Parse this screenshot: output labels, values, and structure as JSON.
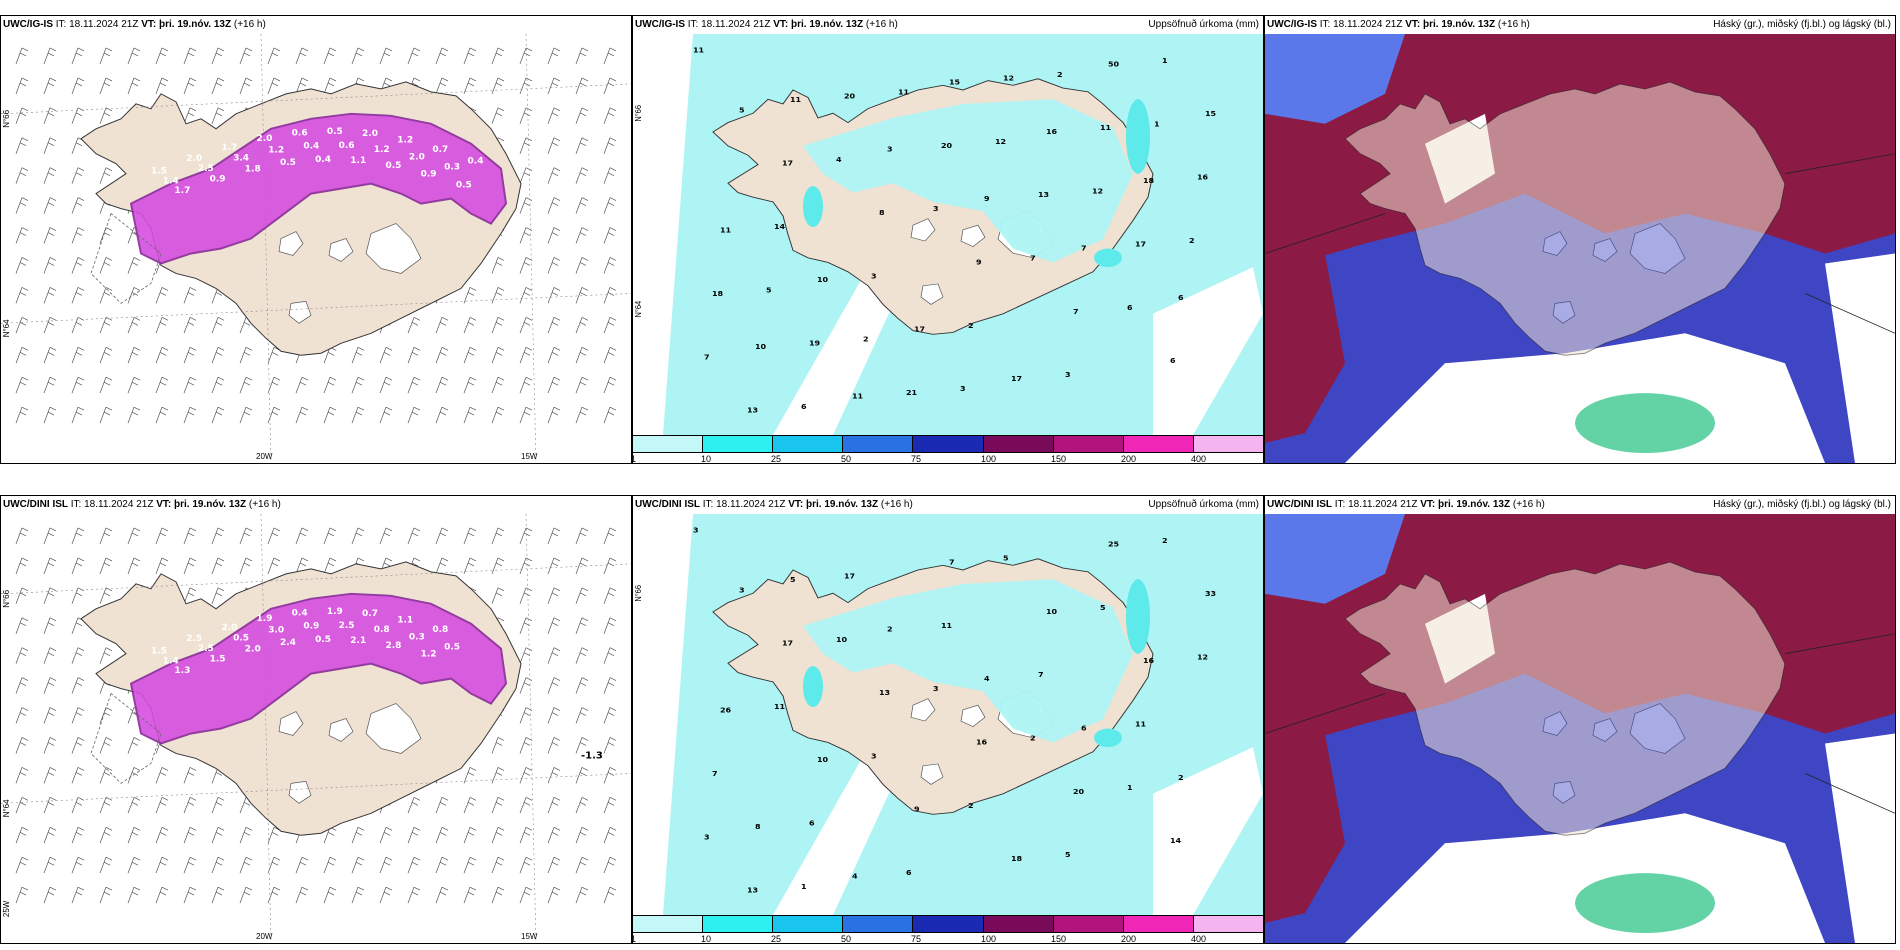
{
  "panels": [
    {
      "id": "p1",
      "model": "UWC/IG-IS",
      "it_label": "IT:",
      "it": "18.11.2024 21Z",
      "vt_label": "VT:",
      "vt": "þri. 19.nóv. 13Z",
      "lead": "(+16 h)",
      "field_title": "",
      "lat_labels": [
        "N°66",
        "N°64"
      ],
      "lon_labels": [
        "20W",
        "15W"
      ],
      "values": [
        "1.5",
        "1.4",
        "1.7",
        "2.0",
        "2.5",
        "0.9",
        "1.7",
        "3.4",
        "1.8",
        "2.0",
        "1.2",
        "0.5",
        "0.6",
        "0.4",
        "0.4",
        "0.5",
        "0.6",
        "1.1",
        "2.0",
        "1.2",
        "0.5",
        "1.2",
        "2.0",
        "0.9",
        "0.7",
        "0.3",
        "0.5",
        "0.4"
      ],
      "temp": ""
    },
    {
      "id": "p2",
      "model": "UWC/IG-IS",
      "it_label": "IT:",
      "it": "18.11.2024 21Z",
      "vt_label": "VT:",
      "vt": "þri. 19.nóv. 13Z",
      "lead": "(+16 h)",
      "field_title": "Uppsöfnuð úrkoma (mm)",
      "lat_labels": [
        "N°66",
        "N°64"
      ],
      "values": [
        "11",
        "11",
        "3",
        "9",
        "7",
        "6",
        "10",
        "11",
        "15",
        "16",
        "18",
        "11",
        "10",
        "17",
        "17",
        "50",
        "15",
        "17",
        "8",
        "9",
        "7",
        "6",
        "13",
        "20",
        "20",
        "13",
        "17",
        "18",
        "19",
        "21",
        "12",
        "11",
        "16",
        "14",
        "3",
        "2",
        "3",
        "1",
        "5",
        "4",
        "3",
        "7",
        "6",
        "7",
        "6",
        "11",
        "12",
        "12",
        "2",
        "5",
        "2",
        "3",
        "2",
        "1"
      ],
      "colorbar": [
        "1",
        "10",
        "25",
        "50",
        "75",
        "100",
        "150",
        "200",
        "400"
      ]
    },
    {
      "id": "p3",
      "model": "UWC/IG-IS",
      "it_label": "IT:",
      "it": "18.11.2024 21Z",
      "vt_label": "VT:",
      "vt": "þri. 19.nóv. 13Z",
      "lead": "(+16 h)",
      "field_title": "Háský (gr.), miðský (fj.bl.) og lágský (bl.)"
    },
    {
      "id": "p4",
      "model": "UWC/DINI ISL",
      "it_label": "IT:",
      "it": "18.11.2024 21Z",
      "vt_label": "VT:",
      "vt": "þri. 19.nóv. 13Z",
      "lead": "(+16 h)",
      "field_title": "",
      "lat_labels": [
        "N°66",
        "N°64"
      ],
      "lon_labels": [
        "20W",
        "15W",
        "25W"
      ],
      "values": [
        "1.5",
        "1.4",
        "1.3",
        "2.5",
        "2.5",
        "1.5",
        "2.0",
        "0.5",
        "2.0",
        "1.9",
        "3.0",
        "2.4",
        "0.4",
        "0.9",
        "0.5",
        "1.9",
        "2.5",
        "2.1",
        "0.7",
        "0.8",
        "2.8",
        "1.1",
        "0.3",
        "1.2",
        "0.8",
        "0.5"
      ],
      "temp": "-1.3"
    },
    {
      "id": "p5",
      "model": "UWC/DINI ISL",
      "it_label": "IT:",
      "it": "18.11.2024 21Z",
      "vt_label": "VT:",
      "vt": "þri. 19.nóv. 13Z",
      "lead": "(+16 h)",
      "field_title": "Uppsöfnuð úrkoma (mm)",
      "lat_labels": [
        "N°66"
      ],
      "values": [
        "3",
        "5",
        "2",
        "4",
        "6",
        "2",
        "8",
        "4",
        "7",
        "10",
        "16",
        "26",
        "10",
        "9",
        "18",
        "25",
        "33",
        "17",
        "13",
        "16",
        "20",
        "14",
        "13",
        "17",
        "11",
        "7",
        "11",
        "7",
        "6",
        "6",
        "5",
        "5",
        "12",
        "11",
        "3",
        "2",
        "5",
        "2",
        "3",
        "10",
        "3",
        "2",
        "1",
        "3",
        "1"
      ],
      "colorbar": [
        "1",
        "10",
        "25",
        "50",
        "75",
        "100",
        "150",
        "200",
        "400"
      ]
    },
    {
      "id": "p6",
      "model": "UWC/DINI ISL",
      "it_label": "IT:",
      "it": "18.11.2024 21Z",
      "vt_label": "VT:",
      "vt": "þri. 19.nóv. 13Z",
      "lead": "(+16 h)",
      "field_title": "Háský (gr.), miðský (fj.bl.) og lágský (bl.)"
    }
  ],
  "colors": {
    "land": "#efe2d3",
    "precip_light": "#aef4f4",
    "precip_med": "#5eeaea",
    "precip_dark": "#1ed4d4",
    "snow": "#d64fe0",
    "snow_dark": "#8a2a9a",
    "cloud_high": "#8b1a44",
    "cloud_mid": "#3f46c4",
    "cloud_low": "#5a78ea",
    "cloud_edge": "#c8d6f6",
    "green": "#3cc890",
    "cb": [
      "#c4f7f7",
      "#2ff0f0",
      "#1ac6ee",
      "#2a72e4",
      "#1a2ab2",
      "#7a0a5a",
      "#b2147e",
      "#f026b6",
      "#f4b4f0"
    ]
  }
}
